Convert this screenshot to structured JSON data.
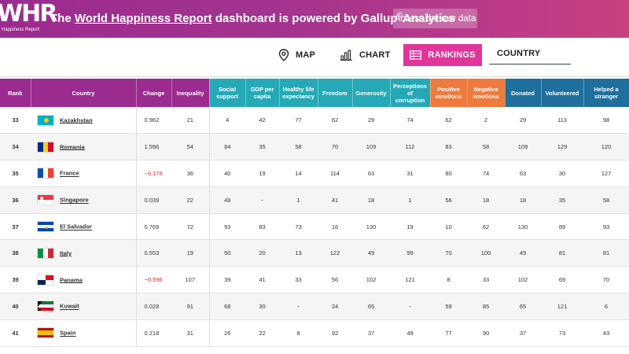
{
  "banner": {
    "logo_mark": "WHR",
    "logo_sub": "Happiness Report",
    "text_pre": "The ",
    "text_link": "World Happiness Report",
    "text_mid": " dashboard is powered by Gallup",
    "text_sup": "©",
    "text_post": "Analytics",
    "raw_button": "Access the raw data"
  },
  "nav": {
    "map": "MAP",
    "chart": "CHART",
    "rankings": "RANKINGS",
    "country": "COUNTRY"
  },
  "headers": {
    "rank": "Rank",
    "country": "Country",
    "change": "Change",
    "inequality": "Inequality",
    "social": "Social support",
    "gdp": "GDP per capita",
    "health": "Healthy life expectancy",
    "freedom": "Freedom",
    "generosity": "Generosity",
    "corruption": "Perceptions of corruption",
    "positive": "Positive emotions",
    "negative": "Negative emotions",
    "donated": "Donated",
    "volunteered": "Volunteered",
    "helped": "Helped a stranger"
  },
  "colors": {
    "purple": "#9c2b8f",
    "teal": "#26a9b7",
    "orange": "#ef7a3d",
    "navy": "#1f6f9e",
    "pink": "#e0359a",
    "negative_change": "#d92b2b"
  },
  "rows": [
    {
      "rank": "33",
      "country": "Kazakhstan",
      "flag": "kazakhstan-flag",
      "change": "0.962",
      "neg": false,
      "inequality": "21",
      "social": "4",
      "gdp": "42",
      "health": "77",
      "freedom": "62",
      "generosity": "29",
      "corruption": "74",
      "positive": "62",
      "negative": "2",
      "donated": "29",
      "volunteered": "113",
      "helped": "98"
    },
    {
      "rank": "34",
      "country": "Romania",
      "flag": "romania-flag",
      "change": "1.596",
      "neg": false,
      "inequality": "54",
      "social": "84",
      "gdp": "35",
      "health": "58",
      "freedom": "70",
      "generosity": "109",
      "corruption": "112",
      "positive": "83",
      "negative": "58",
      "donated": "109",
      "volunteered": "129",
      "helped": "120"
    },
    {
      "rank": "35",
      "country": "France",
      "flag": "france-flag",
      "change": "−0.178",
      "neg": true,
      "inequality": "36",
      "social": "40",
      "gdp": "19",
      "health": "14",
      "freedom": "114",
      "generosity": "63",
      "corruption": "31",
      "positive": "80",
      "negative": "74",
      "donated": "63",
      "volunteered": "30",
      "helped": "127"
    },
    {
      "rank": "36",
      "country": "Singapore",
      "flag": "singapore-flag",
      "change": "0.039",
      "neg": false,
      "inequality": "22",
      "social": "48",
      "gdp": "-",
      "health": "1",
      "freedom": "41",
      "generosity": "18",
      "corruption": "1",
      "positive": "56",
      "negative": "18",
      "donated": "18",
      "volunteered": "35",
      "helped": "58"
    },
    {
      "rank": "37",
      "country": "El Salvador",
      "flag": "el-salvador-flag",
      "change": "0.769",
      "neg": false,
      "inequality": "72",
      "social": "93",
      "gdp": "83",
      "health": "73",
      "freedom": "16",
      "generosity": "130",
      "corruption": "19",
      "positive": "10",
      "negative": "62",
      "donated": "130",
      "volunteered": "89",
      "helped": "93"
    },
    {
      "rank": "38",
      "country": "Italy",
      "flag": "italy-flag",
      "change": "0.553",
      "neg": false,
      "inequality": "19",
      "social": "50",
      "gdp": "20",
      "health": "13",
      "freedom": "122",
      "generosity": "49",
      "corruption": "99",
      "positive": "70",
      "negative": "100",
      "donated": "49",
      "volunteered": "81",
      "helped": "81"
    },
    {
      "rank": "39",
      "country": "Panama",
      "flag": "panama-flag",
      "change": "−0.596",
      "neg": true,
      "inequality": "107",
      "social": "39",
      "gdp": "41",
      "health": "33",
      "freedom": "56",
      "generosity": "102",
      "corruption": "121",
      "positive": "8",
      "negative": "33",
      "donated": "102",
      "volunteered": "69",
      "helped": "70"
    },
    {
      "rank": "40",
      "country": "Kuwait",
      "flag": "kuwait-flag",
      "change": "0.028",
      "neg": false,
      "inequality": "91",
      "social": "68",
      "gdp": "30",
      "health": "-",
      "freedom": "24",
      "generosity": "65",
      "corruption": "-",
      "positive": "59",
      "negative": "85",
      "donated": "65",
      "volunteered": "121",
      "helped": "6"
    },
    {
      "rank": "41",
      "country": "Spain",
      "flag": "spain-flag",
      "change": "0.218",
      "neg": false,
      "inequality": "31",
      "social": "26",
      "gdp": "22",
      "health": "8",
      "freedom": "92",
      "generosity": "37",
      "corruption": "49",
      "positive": "77",
      "negative": "90",
      "donated": "37",
      "volunteered": "73",
      "helped": "43"
    }
  ]
}
